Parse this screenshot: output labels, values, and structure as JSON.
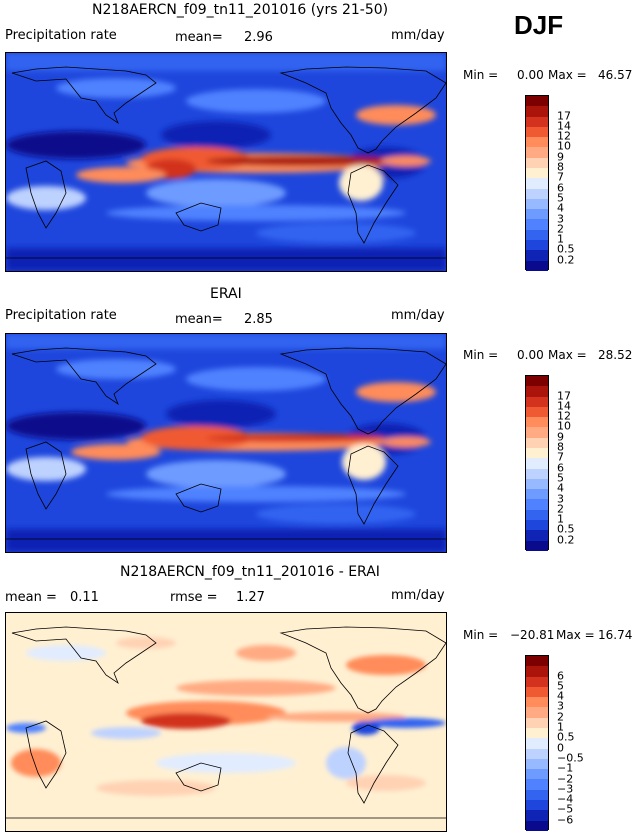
{
  "season": "DJF",
  "units": "mm/day",
  "chart_data": [
    {
      "type": "heatmap",
      "title": "N218AERCN_f09_tn11_201016 (yrs 21-50)",
      "variable": "Precipitation rate",
      "mean_label": "mean=",
      "mean": "2.96",
      "units": "mm/day",
      "min_label": "Min =",
      "min": "0.00",
      "max_label": "Max =",
      "max": "46.57",
      "colorbar_levels": [
        "0.2",
        "0.5",
        "1",
        "2",
        "3",
        "4",
        "5",
        "6",
        "7",
        "8",
        "9",
        "10",
        "12",
        "14",
        "17"
      ],
      "colors": [
        "#0a0a8c",
        "#0f23b4",
        "#1e46dc",
        "#3264f0",
        "#5082ff",
        "#6e9bff",
        "#96b9ff",
        "#bed2ff",
        "#e1ecff",
        "#fff0d2",
        "#ffd2b4",
        "#ffaa82",
        "#ff8c5a",
        "#f05a32",
        "#d2321e",
        "#aa140a",
        "#7d0000"
      ]
    },
    {
      "type": "heatmap",
      "title": "ERAI",
      "variable": "Precipitation rate",
      "mean_label": "mean=",
      "mean": "2.85",
      "units": "mm/day",
      "min_label": "Min =",
      "min": "0.00",
      "max_label": "Max =",
      "max": "28.52",
      "colorbar_levels": [
        "0.2",
        "0.5",
        "1",
        "2",
        "3",
        "4",
        "5",
        "6",
        "7",
        "8",
        "9",
        "10",
        "12",
        "14",
        "17"
      ],
      "colors": [
        "#0a0a8c",
        "#0f23b4",
        "#1e46dc",
        "#3264f0",
        "#5082ff",
        "#6e9bff",
        "#96b9ff",
        "#bed2ff",
        "#e1ecff",
        "#fff0d2",
        "#ffd2b4",
        "#ffaa82",
        "#ff8c5a",
        "#f05a32",
        "#d2321e",
        "#aa140a",
        "#7d0000"
      ]
    },
    {
      "type": "heatmap",
      "title": "N218AERCN_f09_tn11_201016 - ERAI",
      "mean_label": "mean =",
      "mean": "0.11",
      "rmse_label": "rmse =",
      "rmse": "1.27",
      "units": "mm/day",
      "min_label": "Min =",
      "min": "−20.81",
      "max_label": "Max =",
      "max": "16.74",
      "colorbar_levels": [
        "−6",
        "−5",
        "−4",
        "−3",
        "−2",
        "−1",
        "−0.5",
        "0",
        "0.5",
        "1",
        "2",
        "3",
        "4",
        "5",
        "6"
      ],
      "colors": [
        "#0a0a8c",
        "#0f23b4",
        "#1e46dc",
        "#3264f0",
        "#5082ff",
        "#6e9bff",
        "#96b9ff",
        "#bed2ff",
        "#e1ecff",
        "#fff0d2",
        "#ffd2b4",
        "#ffaa82",
        "#ff8c5a",
        "#f05a32",
        "#d2321e",
        "#aa140a",
        "#7d0000"
      ]
    }
  ]
}
